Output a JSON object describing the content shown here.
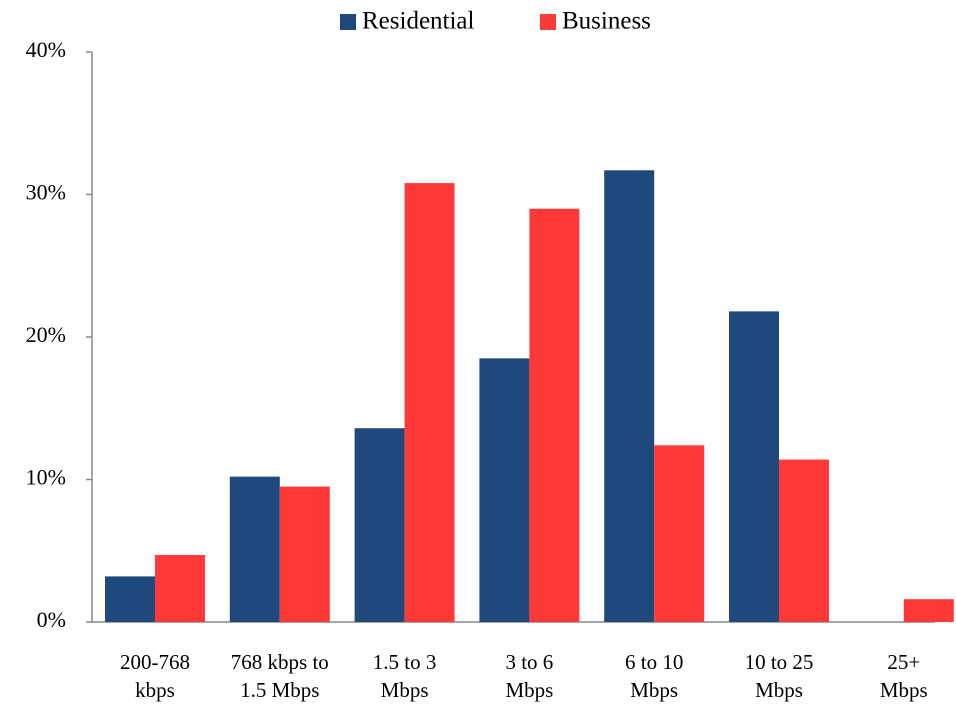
{
  "chart_data": {
    "type": "bar",
    "categories": [
      "200-768\nkbps",
      "768 kbps to\n1.5 Mbps",
      "1.5 to 3\nMbps",
      "3 to 6\nMbps",
      "6 to 10\nMbps",
      "10 to 25\nMbps",
      "25+\nMbps"
    ],
    "series": [
      {
        "name": "Residential",
        "color": "#1f497d",
        "values": [
          3.2,
          10.2,
          13.6,
          18.5,
          31.7,
          21.8,
          0
        ]
      },
      {
        "name": "Business",
        "color": "#ff3838",
        "values": [
          4.7,
          9.5,
          30.8,
          29.0,
          12.4,
          11.4,
          1.6
        ]
      }
    ],
    "ylim": [
      0,
      40
    ],
    "yticks": [
      {
        "value": 0,
        "label": "0%"
      },
      {
        "value": 10,
        "label": "10%"
      },
      {
        "value": 20,
        "label": "20%"
      },
      {
        "value": 30,
        "label": "30%"
      },
      {
        "value": 40,
        "label": "40%"
      }
    ],
    "legend": "top",
    "grid": false
  }
}
